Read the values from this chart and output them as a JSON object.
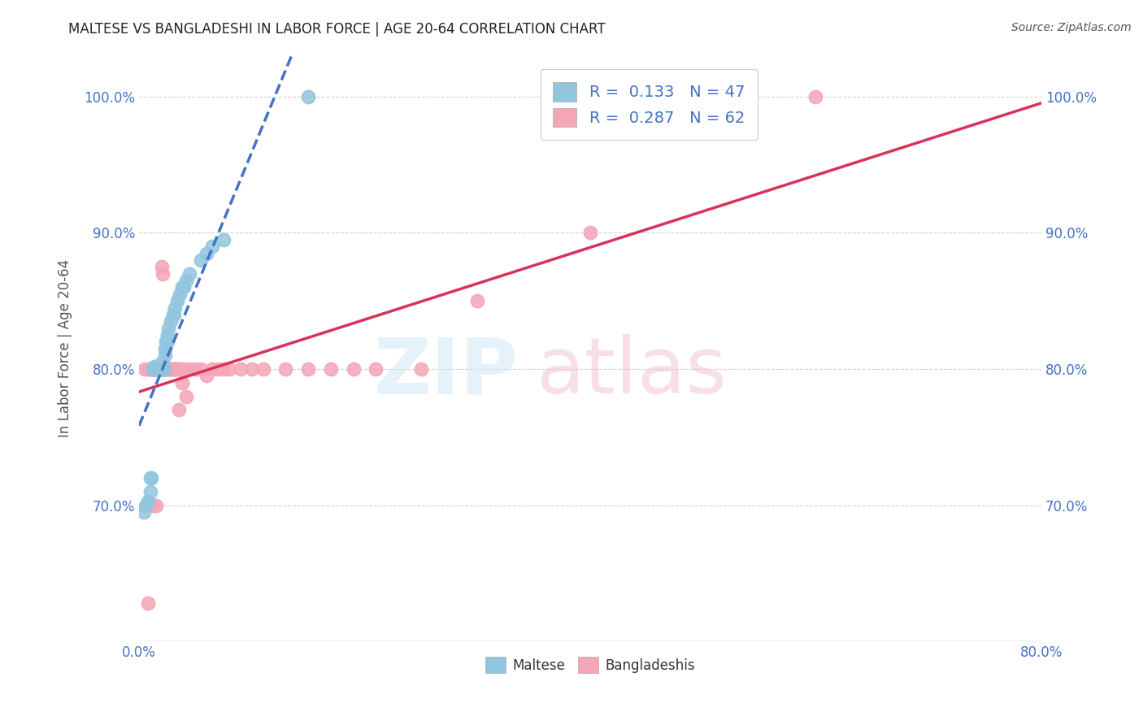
{
  "title": "MALTESE VS BANGLADESHI IN LABOR FORCE | AGE 20-64 CORRELATION CHART",
  "source": "Source: ZipAtlas.com",
  "ylabel": "In Labor Force | Age 20-64",
  "xlim": [
    0.0,
    0.8
  ],
  "ylim": [
    0.6,
    1.03
  ],
  "y_ticks": [
    0.7,
    0.8,
    0.9,
    1.0
  ],
  "maltese_color": "#92c5de",
  "bangladeshis_color": "#f4a6b8",
  "trend_maltese_color": "#4472c4",
  "trend_bangladeshis_color": "#d9315a",
  "maltese_x": [
    0.004,
    0.006,
    0.008,
    0.01,
    0.01,
    0.011,
    0.012,
    0.013,
    0.013,
    0.014,
    0.014,
    0.015,
    0.015,
    0.016,
    0.016,
    0.017,
    0.017,
    0.018,
    0.018,
    0.019,
    0.019,
    0.02,
    0.02,
    0.021,
    0.021,
    0.022,
    0.023,
    0.023,
    0.024,
    0.025,
    0.025,
    0.026,
    0.028,
    0.03,
    0.031,
    0.032,
    0.034,
    0.036,
    0.038,
    0.04,
    0.042,
    0.045,
    0.055,
    0.06,
    0.065,
    0.075,
    0.15
  ],
  "maltese_y": [
    0.695,
    0.7,
    0.703,
    0.71,
    0.72,
    0.72,
    0.8,
    0.8,
    0.8,
    0.8,
    0.802,
    0.8,
    0.8,
    0.8,
    0.8,
    0.8,
    0.8,
    0.8,
    0.8,
    0.8,
    0.8,
    0.8,
    0.805,
    0.8,
    0.8,
    0.8,
    0.81,
    0.815,
    0.82,
    0.82,
    0.825,
    0.83,
    0.835,
    0.84,
    0.84,
    0.845,
    0.85,
    0.855,
    0.86,
    0.86,
    0.865,
    0.87,
    0.88,
    0.885,
    0.89,
    0.895,
    1.0
  ],
  "bangladeshis_x": [
    0.005,
    0.008,
    0.009,
    0.01,
    0.011,
    0.012,
    0.013,
    0.014,
    0.015,
    0.015,
    0.016,
    0.016,
    0.017,
    0.017,
    0.018,
    0.018,
    0.019,
    0.019,
    0.02,
    0.02,
    0.021,
    0.021,
    0.022,
    0.022,
    0.023,
    0.023,
    0.024,
    0.025,
    0.026,
    0.027,
    0.028,
    0.029,
    0.03,
    0.031,
    0.032,
    0.033,
    0.034,
    0.035,
    0.036,
    0.038,
    0.04,
    0.042,
    0.045,
    0.05,
    0.055,
    0.06,
    0.065,
    0.07,
    0.075,
    0.08,
    0.09,
    0.1,
    0.11,
    0.13,
    0.15,
    0.17,
    0.19,
    0.21,
    0.25,
    0.3,
    0.4,
    0.6
  ],
  "bangladeshis_y": [
    0.8,
    0.628,
    0.8,
    0.8,
    0.8,
    0.7,
    0.8,
    0.8,
    0.8,
    0.7,
    0.8,
    0.8,
    0.8,
    0.8,
    0.8,
    0.8,
    0.8,
    0.8,
    0.8,
    0.875,
    0.8,
    0.87,
    0.8,
    0.8,
    0.8,
    0.8,
    0.8,
    0.8,
    0.8,
    0.8,
    0.8,
    0.8,
    0.8,
    0.8,
    0.8,
    0.8,
    0.8,
    0.77,
    0.8,
    0.79,
    0.8,
    0.78,
    0.8,
    0.8,
    0.8,
    0.795,
    0.8,
    0.8,
    0.8,
    0.8,
    0.8,
    0.8,
    0.8,
    0.8,
    0.8,
    0.8,
    0.8,
    0.8,
    0.8,
    0.85,
    0.9,
    1.0
  ]
}
